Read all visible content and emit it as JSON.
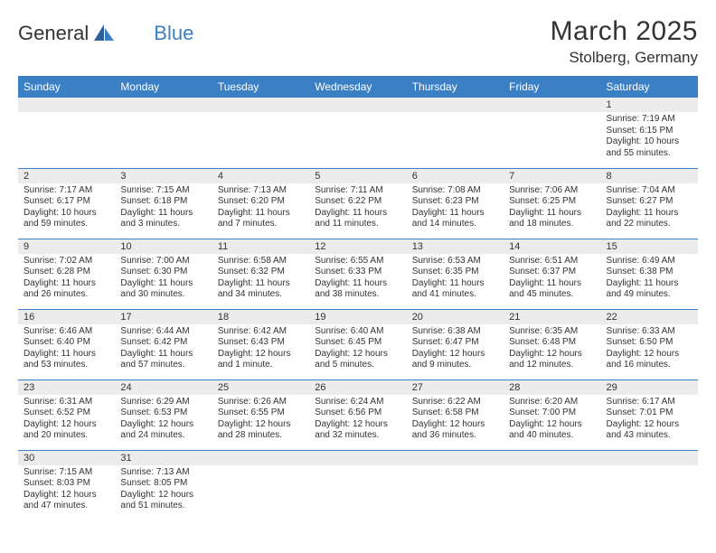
{
  "brand": {
    "word1": "General",
    "word2": "Blue"
  },
  "title": "March 2025",
  "location": "Stolberg, Germany",
  "headers": [
    "Sunday",
    "Monday",
    "Tuesday",
    "Wednesday",
    "Thursday",
    "Friday",
    "Saturday"
  ],
  "colors": {
    "accent": "#3b7fc4",
    "header_text": "#ffffff",
    "daynum_bg": "#ececec",
    "text": "#333333",
    "border": "#3b7fc4"
  },
  "weeks": [
    [
      null,
      null,
      null,
      null,
      null,
      null,
      {
        "n": "1",
        "sunrise": "Sunrise: 7:19 AM",
        "sunset": "Sunset: 6:15 PM",
        "daylight": "Daylight: 10 hours and 55 minutes."
      }
    ],
    [
      {
        "n": "2",
        "sunrise": "Sunrise: 7:17 AM",
        "sunset": "Sunset: 6:17 PM",
        "daylight": "Daylight: 10 hours and 59 minutes."
      },
      {
        "n": "3",
        "sunrise": "Sunrise: 7:15 AM",
        "sunset": "Sunset: 6:18 PM",
        "daylight": "Daylight: 11 hours and 3 minutes."
      },
      {
        "n": "4",
        "sunrise": "Sunrise: 7:13 AM",
        "sunset": "Sunset: 6:20 PM",
        "daylight": "Daylight: 11 hours and 7 minutes."
      },
      {
        "n": "5",
        "sunrise": "Sunrise: 7:11 AM",
        "sunset": "Sunset: 6:22 PM",
        "daylight": "Daylight: 11 hours and 11 minutes."
      },
      {
        "n": "6",
        "sunrise": "Sunrise: 7:08 AM",
        "sunset": "Sunset: 6:23 PM",
        "daylight": "Daylight: 11 hours and 14 minutes."
      },
      {
        "n": "7",
        "sunrise": "Sunrise: 7:06 AM",
        "sunset": "Sunset: 6:25 PM",
        "daylight": "Daylight: 11 hours and 18 minutes."
      },
      {
        "n": "8",
        "sunrise": "Sunrise: 7:04 AM",
        "sunset": "Sunset: 6:27 PM",
        "daylight": "Daylight: 11 hours and 22 minutes."
      }
    ],
    [
      {
        "n": "9",
        "sunrise": "Sunrise: 7:02 AM",
        "sunset": "Sunset: 6:28 PM",
        "daylight": "Daylight: 11 hours and 26 minutes."
      },
      {
        "n": "10",
        "sunrise": "Sunrise: 7:00 AM",
        "sunset": "Sunset: 6:30 PM",
        "daylight": "Daylight: 11 hours and 30 minutes."
      },
      {
        "n": "11",
        "sunrise": "Sunrise: 6:58 AM",
        "sunset": "Sunset: 6:32 PM",
        "daylight": "Daylight: 11 hours and 34 minutes."
      },
      {
        "n": "12",
        "sunrise": "Sunrise: 6:55 AM",
        "sunset": "Sunset: 6:33 PM",
        "daylight": "Daylight: 11 hours and 38 minutes."
      },
      {
        "n": "13",
        "sunrise": "Sunrise: 6:53 AM",
        "sunset": "Sunset: 6:35 PM",
        "daylight": "Daylight: 11 hours and 41 minutes."
      },
      {
        "n": "14",
        "sunrise": "Sunrise: 6:51 AM",
        "sunset": "Sunset: 6:37 PM",
        "daylight": "Daylight: 11 hours and 45 minutes."
      },
      {
        "n": "15",
        "sunrise": "Sunrise: 6:49 AM",
        "sunset": "Sunset: 6:38 PM",
        "daylight": "Daylight: 11 hours and 49 minutes."
      }
    ],
    [
      {
        "n": "16",
        "sunrise": "Sunrise: 6:46 AM",
        "sunset": "Sunset: 6:40 PM",
        "daylight": "Daylight: 11 hours and 53 minutes."
      },
      {
        "n": "17",
        "sunrise": "Sunrise: 6:44 AM",
        "sunset": "Sunset: 6:42 PM",
        "daylight": "Daylight: 11 hours and 57 minutes."
      },
      {
        "n": "18",
        "sunrise": "Sunrise: 6:42 AM",
        "sunset": "Sunset: 6:43 PM",
        "daylight": "Daylight: 12 hours and 1 minute."
      },
      {
        "n": "19",
        "sunrise": "Sunrise: 6:40 AM",
        "sunset": "Sunset: 6:45 PM",
        "daylight": "Daylight: 12 hours and 5 minutes."
      },
      {
        "n": "20",
        "sunrise": "Sunrise: 6:38 AM",
        "sunset": "Sunset: 6:47 PM",
        "daylight": "Daylight: 12 hours and 9 minutes."
      },
      {
        "n": "21",
        "sunrise": "Sunrise: 6:35 AM",
        "sunset": "Sunset: 6:48 PM",
        "daylight": "Daylight: 12 hours and 12 minutes."
      },
      {
        "n": "22",
        "sunrise": "Sunrise: 6:33 AM",
        "sunset": "Sunset: 6:50 PM",
        "daylight": "Daylight: 12 hours and 16 minutes."
      }
    ],
    [
      {
        "n": "23",
        "sunrise": "Sunrise: 6:31 AM",
        "sunset": "Sunset: 6:52 PM",
        "daylight": "Daylight: 12 hours and 20 minutes."
      },
      {
        "n": "24",
        "sunrise": "Sunrise: 6:29 AM",
        "sunset": "Sunset: 6:53 PM",
        "daylight": "Daylight: 12 hours and 24 minutes."
      },
      {
        "n": "25",
        "sunrise": "Sunrise: 6:26 AM",
        "sunset": "Sunset: 6:55 PM",
        "daylight": "Daylight: 12 hours and 28 minutes."
      },
      {
        "n": "26",
        "sunrise": "Sunrise: 6:24 AM",
        "sunset": "Sunset: 6:56 PM",
        "daylight": "Daylight: 12 hours and 32 minutes."
      },
      {
        "n": "27",
        "sunrise": "Sunrise: 6:22 AM",
        "sunset": "Sunset: 6:58 PM",
        "daylight": "Daylight: 12 hours and 36 minutes."
      },
      {
        "n": "28",
        "sunrise": "Sunrise: 6:20 AM",
        "sunset": "Sunset: 7:00 PM",
        "daylight": "Daylight: 12 hours and 40 minutes."
      },
      {
        "n": "29",
        "sunrise": "Sunrise: 6:17 AM",
        "sunset": "Sunset: 7:01 PM",
        "daylight": "Daylight: 12 hours and 43 minutes."
      }
    ],
    [
      {
        "n": "30",
        "sunrise": "Sunrise: 7:15 AM",
        "sunset": "Sunset: 8:03 PM",
        "daylight": "Daylight: 12 hours and 47 minutes."
      },
      {
        "n": "31",
        "sunrise": "Sunrise: 7:13 AM",
        "sunset": "Sunset: 8:05 PM",
        "daylight": "Daylight: 12 hours and 51 minutes."
      },
      null,
      null,
      null,
      null,
      null
    ]
  ]
}
